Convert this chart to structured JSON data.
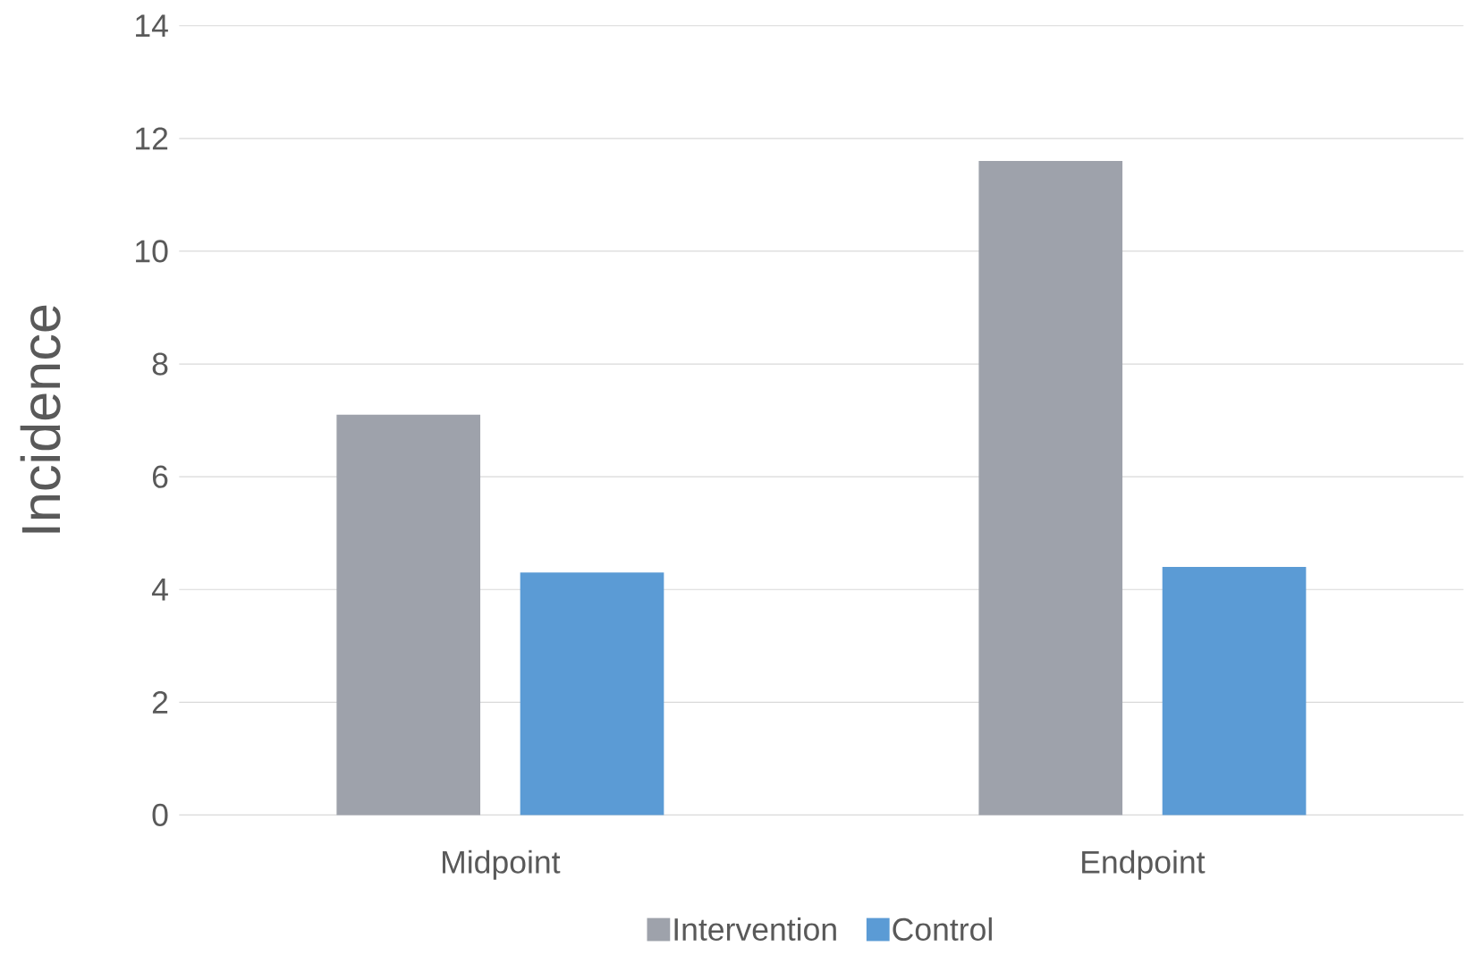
{
  "chart_data": {
    "type": "bar",
    "ylabel": "Incidence",
    "categories": [
      "Midpoint",
      "Endpoint"
    ],
    "series": [
      {
        "name": "Intervention",
        "color": "#9ea2ab",
        "values": [
          7.1,
          11.6
        ]
      },
      {
        "name": "Control",
        "color": "#5b9bd5",
        "values": [
          4.3,
          4.4
        ]
      }
    ],
    "ylim": [
      0,
      14
    ],
    "yticks": [
      0,
      2,
      4,
      6,
      8,
      10,
      12,
      14
    ],
    "grid": "y",
    "legend": "bottom"
  }
}
